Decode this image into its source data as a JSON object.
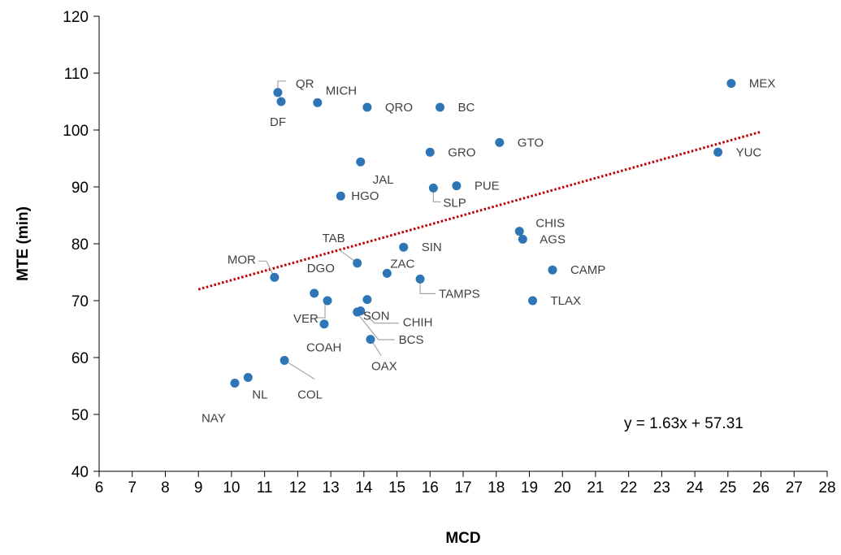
{
  "chart_data": {
    "type": "scatter",
    "xlabel": "MCD",
    "ylabel": "MTE (min)",
    "xlim": [
      6,
      28
    ],
    "ylim": [
      40,
      120
    ],
    "xticks": [
      "6",
      "7",
      "8",
      "9",
      "10",
      "11",
      "12",
      "13",
      "14",
      "15",
      "16",
      "17",
      "18",
      "19",
      "20",
      "21",
      "22",
      "23",
      "24",
      "25",
      "26",
      "27",
      "28"
    ],
    "yticks": [
      "40",
      "50",
      "60",
      "70",
      "80",
      "90",
      "100",
      "110",
      "120"
    ],
    "grid": false,
    "marker_color": "#2E75B6",
    "trendline": {
      "label": "y = 1.63x + 57.31",
      "slope": 1.63,
      "intercept": 57.31,
      "x_range": [
        9,
        26
      ],
      "color": "#C00000",
      "style": "dotted"
    },
    "points": [
      {
        "label": "QR",
        "x": 11.4,
        "y": 106.6
      },
      {
        "label": "DF",
        "x": 11.5,
        "y": 105.0
      },
      {
        "label": "MICH",
        "x": 12.6,
        "y": 104.8
      },
      {
        "label": "QRO",
        "x": 14.1,
        "y": 104.0
      },
      {
        "label": "BC",
        "x": 16.3,
        "y": 104.0
      },
      {
        "label": "MEX",
        "x": 25.1,
        "y": 108.2
      },
      {
        "label": "GTO",
        "x": 18.1,
        "y": 97.8
      },
      {
        "label": "GRO",
        "x": 16.0,
        "y": 96.1
      },
      {
        "label": "YUC",
        "x": 24.7,
        "y": 96.1
      },
      {
        "label": "JAL",
        "x": 13.9,
        "y": 94.4
      },
      {
        "label": "PUE",
        "x": 16.8,
        "y": 90.2
      },
      {
        "label": "SLP",
        "x": 16.1,
        "y": 89.8
      },
      {
        "label": "HGO",
        "x": 13.3,
        "y": 88.4
      },
      {
        "label": "CHIS",
        "x": 18.7,
        "y": 82.2
      },
      {
        "label": "AGS",
        "x": 18.8,
        "y": 80.8
      },
      {
        "label": "SIN",
        "x": 15.2,
        "y": 79.4
      },
      {
        "label": "TAB",
        "x": 13.8,
        "y": 76.6
      },
      {
        "label": "CAMP",
        "x": 19.7,
        "y": 75.4
      },
      {
        "label": "ZAC",
        "x": 14.7,
        "y": 74.8
      },
      {
        "label": "MOR",
        "x": 11.3,
        "y": 74.1
      },
      {
        "label": "TAMPS",
        "x": 15.7,
        "y": 73.8
      },
      {
        "label": "DGO",
        "x": 12.5,
        "y": 71.3
      },
      {
        "label": "SON",
        "x": 14.1,
        "y": 70.2
      },
      {
        "label": "VER",
        "x": 12.9,
        "y": 70.0
      },
      {
        "label": "TLAX",
        "x": 19.1,
        "y": 70.0
      },
      {
        "label": "CHIH",
        "x": 13.9,
        "y": 68.2
      },
      {
        "label": "BCS",
        "x": 13.8,
        "y": 68.0
      },
      {
        "label": "COAH",
        "x": 12.8,
        "y": 65.9
      },
      {
        "label": "OAX",
        "x": 14.2,
        "y": 63.2
      },
      {
        "label": "COL",
        "x": 11.6,
        "y": 59.5
      },
      {
        "label": "NL",
        "x": 10.5,
        "y": 56.5
      },
      {
        "label": "NAY",
        "x": 10.1,
        "y": 55.5
      }
    ]
  }
}
